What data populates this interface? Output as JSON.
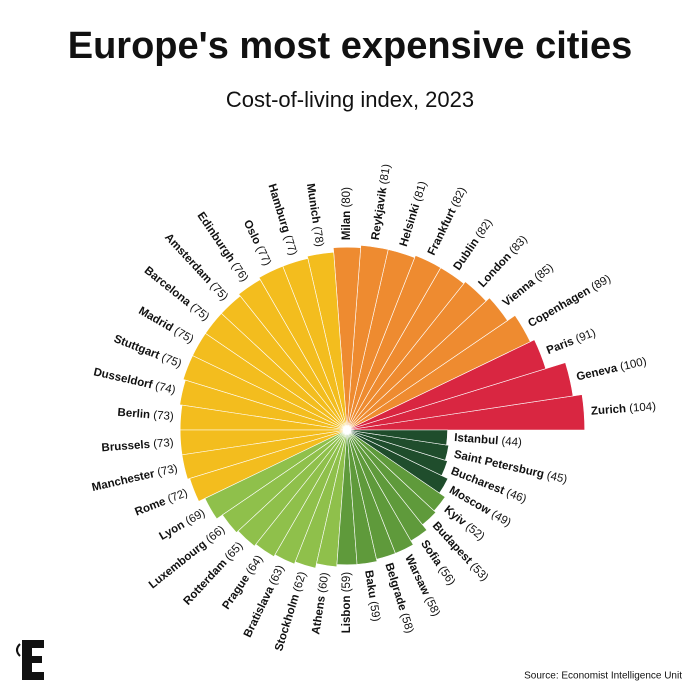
{
  "chart_data": {
    "type": "polar-bar",
    "title": "Europe's most expensive cities",
    "subtitle": "Cost-of-living index, 2023",
    "source": "Source: Economist Intelligence Unit",
    "rlim": [
      0,
      105
    ],
    "categories": [
      "Zurich",
      "Geneva",
      "Paris",
      "Copenhagen",
      "Vienna",
      "London",
      "Dublin",
      "Frankfurt",
      "Helsinki",
      "Reykjavik",
      "Milan",
      "Munich",
      "Hamburg",
      "Oslo",
      "Edinburgh",
      "Amsterdam",
      "Barcelona",
      "Madrid",
      "Stuttgart",
      "Dusseldorf",
      "Berlin",
      "Brussels",
      "Manchester",
      "Rome",
      "Lyon",
      "Luxembourg",
      "Rotterdam",
      "Prague",
      "Bratislava",
      "Stockholm",
      "Athens",
      "Lisbon",
      "Baku",
      "Belgrade",
      "Warsaw",
      "Sofia",
      "Budapest",
      "Kyiv",
      "Moscow",
      "Bucharest",
      "Saint Petersburg",
      "Istanbul"
    ],
    "values": [
      104,
      100,
      91,
      89,
      85,
      83,
      82,
      82,
      81,
      81,
      80,
      78,
      77,
      77,
      76,
      75,
      75,
      75,
      75,
      74,
      73,
      73,
      73,
      72,
      69,
      66,
      65,
      64,
      63,
      62,
      60,
      59,
      59,
      58,
      58,
      56,
      53,
      52,
      49,
      46,
      45,
      44
    ],
    "value_labels": [
      "(104)",
      "(100)",
      "(91)",
      "(89)",
      "(85)",
      "(83)",
      "(82)",
      "(82)",
      "(81)",
      "(81)",
      "(80)",
      "(78)",
      "(77)",
      "(77)",
      "(76)",
      "(75)",
      "(75)",
      "(75)",
      "(75)",
      "(74)",
      "(73)",
      "(73)",
      "(73)",
      "(72)",
      "(69)",
      "(66)",
      "(65)",
      "(64)",
      "(63)",
      "(62)",
      "(60)",
      "(59)",
      "(59)",
      "(58)",
      "(58)",
      "(56)",
      "(53)",
      "(52)",
      "(49)",
      "(46)",
      "(45)",
      "(44)"
    ],
    "colors": [
      "#d92641",
      "#d92641",
      "#d92641",
      "#ee8b30",
      "#ee8b30",
      "#ee8b30",
      "#ee8b30",
      "#ee8b30",
      "#ee8b30",
      "#ee8b30",
      "#ee8b30",
      "#f3bd1e",
      "#f3bd1e",
      "#f3bd1e",
      "#f3bd1e",
      "#f3bd1e",
      "#f3bd1e",
      "#f3bd1e",
      "#f3bd1e",
      "#f3bd1e",
      "#f3bd1e",
      "#f3bd1e",
      "#f3bd1e",
      "#f3bd1e",
      "#8fc04b",
      "#8fc04b",
      "#8fc04b",
      "#8fc04b",
      "#8fc04b",
      "#8fc04b",
      "#8fc04b",
      "#5f9a3b",
      "#5f9a3b",
      "#5f9a3b",
      "#5f9a3b",
      "#5f9a3b",
      "#5f9a3b",
      "#5f9a3b",
      "#1f4d2c",
      "#1f4d2c",
      "#1f4d2c",
      "#1f4d2c"
    ]
  }
}
